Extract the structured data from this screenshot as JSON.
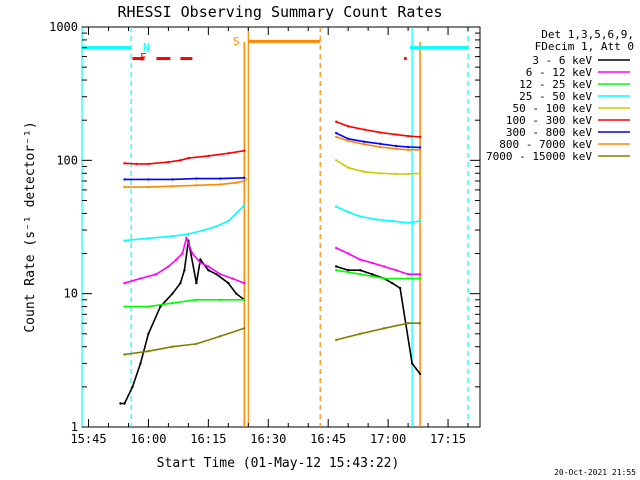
{
  "chart_data": {
    "type": "line",
    "title": "RHESSI Observing Summary Count Rates",
    "xlabel": "Start Time (01-May-12 15:43:22)",
    "ylabel": "Count Rate (s⁻¹ detector⁻¹)",
    "ylog": true,
    "ylim": [
      1,
      1000
    ],
    "xlim": [
      "15:43:22",
      "17:23:00"
    ],
    "x_ticks": [
      "15:45",
      "16:00",
      "16:15",
      "16:30",
      "16:45",
      "17:00",
      "17:15"
    ],
    "y_ticks": [
      "1",
      "10",
      "100",
      "1000"
    ],
    "legend_header": [
      "Det 1,3,5,6,9,",
      "FDecim 1, Att 0"
    ],
    "timestamp": "20-Oct-2021 21:55",
    "flag_labels": {
      "N": "N",
      "F": "F",
      "S": "S"
    },
    "series": [
      {
        "name": "3 - 6 keV",
        "color": "#000000",
        "segments": [
          {
            "t": [
              "15:53:00",
              "15:54:00",
              "15:56:00",
              "15:58:00",
              "16:00:00",
              "16:03:00",
              "16:06:00",
              "16:08:00",
              "16:09:00",
              "16:10:00",
              "16:12:00",
              "16:13:00",
              "16:15:00",
              "16:17:00",
              "16:20:00",
              "16:22:00",
              "16:24:00"
            ],
            "v": [
              1.5,
              1.5,
              2,
              3,
              5,
              8,
              10,
              12,
              15,
              25,
              12,
              18,
              15,
              14,
              12,
              10,
              9
            ]
          },
          {
            "t": [
              "16:47:00",
              "16:50:00",
              "16:53:00",
              "16:56:00",
              "16:59:00",
              "17:01:00",
              "17:03:00",
              "17:06:00",
              "17:08:00"
            ],
            "v": [
              16,
              15,
              15,
              14,
              13,
              12,
              11,
              3,
              2.5
            ]
          }
        ]
      },
      {
        "name": "6 - 12 keV",
        "color": "#ff00ff",
        "segments": [
          {
            "t": [
              "15:54:00",
              "15:58:00",
              "16:02:00",
              "16:05:00",
              "16:07:00",
              "16:08:30",
              "16:09:30",
              "16:11:00",
              "16:13:00",
              "16:15:00",
              "16:18:00",
              "16:21:00",
              "16:24:00"
            ],
            "v": [
              12,
              13,
              14,
              16,
              18,
              20,
              26,
              20,
              17,
              16,
              14,
              13,
              12
            ]
          },
          {
            "t": [
              "16:47:00",
              "16:50:00",
              "16:53:00",
              "16:56:00",
              "16:59:00",
              "17:02:00",
              "17:05:00",
              "17:08:00"
            ],
            "v": [
              22,
              20,
              18,
              17,
              16,
              15,
              14,
              14
            ]
          }
        ]
      },
      {
        "name": "12 - 25 keV",
        "color": "#00ff00",
        "segments": [
          {
            "t": [
              "15:54:00",
              "16:00:00",
              "16:06:00",
              "16:12:00",
              "16:18:00",
              "16:24:00"
            ],
            "v": [
              8,
              8,
              8.5,
              9,
              9,
              9
            ]
          },
          {
            "t": [
              "16:47:00",
              "16:53:00",
              "16:59:00",
              "17:05:00",
              "17:08:00"
            ],
            "v": [
              15,
              14,
              13,
              13,
              13
            ]
          }
        ]
      },
      {
        "name": "25 - 50 keV",
        "color": "#00ffff",
        "segments": [
          {
            "t": [
              "15:54:00",
              "16:00:00",
              "16:06:00",
              "16:10:00",
              "16:14:00",
              "16:17:00",
              "16:20:00",
              "16:22:00",
              "16:24:00"
            ],
            "v": [
              25,
              26,
              27,
              28,
              30,
              32,
              35,
              40,
              46
            ]
          },
          {
            "t": [
              "16:47:00",
              "16:50:00",
              "16:53:00",
              "16:57:00",
              "17:01:00",
              "17:05:00",
              "17:08:00"
            ],
            "v": [
              45,
              41,
              38,
              36,
              35,
              34,
              35
            ]
          }
        ]
      },
      {
        "name": "50 - 100 keV",
        "color": "#cccc00",
        "segments": [
          {
            "t": [
              "16:24:00",
              "16:24:30"
            ],
            "v": [
              70,
              72
            ]
          },
          {
            "t": [
              "16:47:00",
              "16:50:00",
              "16:54:00",
              "16:58:00",
              "17:02:00",
              "17:05:00",
              "17:08:00"
            ],
            "v": [
              100,
              88,
              82,
              80,
              79,
              79,
              80
            ]
          }
        ]
      },
      {
        "name": "100 - 300 keV",
        "color": "#ff0000",
        "segments": [
          {
            "t": [
              "15:54:00",
              "15:57:00",
              "16:00:00",
              "16:05:00",
              "16:08:00",
              "16:10:00",
              "16:15:00",
              "16:20:00",
              "16:24:00"
            ],
            "v": [
              95,
              94,
              94,
              97,
              100,
              104,
              108,
              113,
              118
            ]
          },
          {
            "t": [
              "16:47:00",
              "16:50:00",
              "16:54:00",
              "16:58:00",
              "17:02:00",
              "17:05:00",
              "17:08:00"
            ],
            "v": [
              195,
              180,
              170,
              162,
              156,
              152,
              150
            ]
          }
        ]
      },
      {
        "name": "300 - 800 keV",
        "color": "#0000ff",
        "segments": [
          {
            "t": [
              "15:54:00",
              "16:00:00",
              "16:06:00",
              "16:12:00",
              "16:18:00",
              "16:24:00"
            ],
            "v": [
              72,
              72,
              72,
              73,
              73,
              74
            ]
          },
          {
            "t": [
              "16:47:00",
              "16:50:00",
              "16:54:00",
              "16:58:00",
              "17:02:00",
              "17:05:00",
              "17:08:00"
            ],
            "v": [
              160,
              145,
              138,
              133,
              128,
              126,
              125
            ]
          }
        ]
      },
      {
        "name": "800 - 7000 keV",
        "color": "#ff8800",
        "segments": [
          {
            "t": [
              "15:54:00",
              "16:00:00",
              "16:06:00",
              "16:12:00",
              "16:18:00",
              "16:22:00",
              "16:24:00"
            ],
            "v": [
              63,
              63,
              64,
              65,
              66,
              68,
              70
            ]
          },
          {
            "t": [
              "16:47:00",
              "16:50:00",
              "16:54:00",
              "16:58:00",
              "17:02:00",
              "17:05:00",
              "17:08:00"
            ],
            "v": [
              150,
              140,
              132,
              126,
              122,
              120,
              120
            ]
          }
        ]
      },
      {
        "name": "7000 - 15000 keV",
        "color": "#808000",
        "segments": [
          {
            "t": [
              "15:54:00",
              "16:00:00",
              "16:06:00",
              "16:12:00",
              "16:18:00",
              "16:24:00"
            ],
            "v": [
              3.5,
              3.7,
              4,
              4.2,
              4.8,
              5.5
            ]
          },
          {
            "t": [
              "16:47:00",
              "16:53:00",
              "16:59:00",
              "17:05:00",
              "17:08:00"
            ],
            "v": [
              4.5,
              5,
              5.5,
              6,
              6
            ]
          }
        ]
      }
    ],
    "flags": [
      {
        "name": "N",
        "color": "#00ffff",
        "v": 700,
        "segments": [
          [
            "15:43:22",
            "15:55:30"
          ],
          [
            "17:05:30",
            "17:20:00"
          ]
        ]
      },
      {
        "name": "F",
        "color": "#ff0000",
        "v": 580,
        "segments": [
          [
            "15:56:00",
            "15:59:00"
          ],
          [
            "16:02:00",
            "16:05:30"
          ],
          [
            "16:08:00",
            "16:11:00"
          ],
          [
            "17:04:00",
            "17:04:40"
          ]
        ]
      },
      {
        "name": "S",
        "color": "#ff8800",
        "v": 780,
        "segments": [
          [
            "16:25:00",
            "16:43:00"
          ]
        ]
      }
    ],
    "vlines": [
      {
        "color": "#00ffff",
        "style": "solid",
        "t": "15:43:22"
      },
      {
        "color": "#00ffff",
        "style": "dashed",
        "t": "15:55:40"
      },
      {
        "color": "#ff8800",
        "style": "solid",
        "t": "16:25:00"
      },
      {
        "color": "#ff8800",
        "style": "dashed",
        "t": "16:43:00"
      },
      {
        "color": "#00ffff",
        "style": "solid",
        "t": "17:06:00"
      },
      {
        "color": "#00ffff",
        "style": "dashed",
        "t": "17:20:00"
      }
    ],
    "night_drops": [
      {
        "color": "#ff8800",
        "t": "16:24:00"
      },
      {
        "color": "#ff8800",
        "t": "17:08:00"
      }
    ]
  }
}
